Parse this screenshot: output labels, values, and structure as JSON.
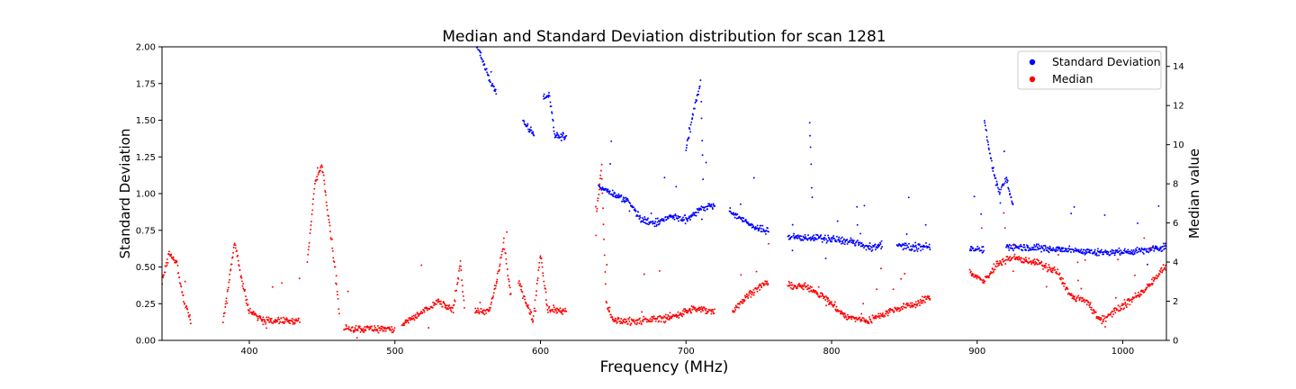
{
  "chart_data": {
    "type": "scatter",
    "title": "Median and Standard Deviation distribution for scan 1281",
    "xlabel": "Frequency (MHz)",
    "ylabel_left": "Standard Deviation",
    "ylabel_right": "Median value",
    "xlim": [
      340,
      1030
    ],
    "ylim_left": [
      0,
      2.0
    ],
    "ylim_right": [
      0,
      15
    ],
    "x_ticks": [
      400,
      500,
      600,
      700,
      800,
      900,
      1000
    ],
    "y_ticks_left": [
      "0.00",
      "0.25",
      "0.50",
      "0.75",
      "1.00",
      "1.25",
      "1.50",
      "1.75",
      "2.00"
    ],
    "y_ticks_right": [
      "0",
      "2",
      "4",
      "6",
      "8",
      "10",
      "12",
      "14"
    ],
    "grid": false,
    "legend_position": "top-right",
    "series": [
      {
        "name": "Standard Deviation",
        "axis": "left",
        "color": "#0000ff",
        "segments": [
          [
            [
              555,
              2.05
            ],
            [
              560,
              1.92
            ],
            [
              565,
              1.78
            ],
            [
              570,
              1.68
            ]
          ],
          [
            [
              588,
              1.5
            ],
            [
              592,
              1.44
            ],
            [
              596,
              1.4
            ]
          ],
          [
            [
              602,
              1.65
            ],
            [
              606,
              1.68
            ],
            [
              610,
              1.4
            ],
            [
              618,
              1.38
            ]
          ],
          [
            [
              640,
              1.05
            ],
            [
              650,
              1.0
            ],
            [
              660,
              0.95
            ],
            [
              670,
              0.82
            ],
            [
              680,
              0.8
            ],
            [
              690,
              0.85
            ],
            [
              700,
              0.82
            ],
            [
              710,
              0.9
            ],
            [
              720,
              0.92
            ]
          ],
          [
            [
              700,
              1.3
            ],
            [
              705,
              1.55
            ],
            [
              710,
              1.75
            ],
            [
              712,
              1.0
            ]
          ],
          [
            [
              730,
              0.88
            ],
            [
              745,
              0.78
            ],
            [
              757,
              0.74
            ]
          ],
          [
            [
              770,
              0.7
            ],
            [
              785,
              0.7
            ],
            [
              800,
              0.69
            ],
            [
              815,
              0.67
            ],
            [
              825,
              0.63
            ],
            [
              835,
              0.65
            ]
          ],
          [
            [
              785,
              1.5
            ],
            [
              786,
              1.2
            ],
            [
              787,
              0.9
            ]
          ],
          [
            [
              845,
              0.65
            ],
            [
              855,
              0.63
            ],
            [
              868,
              0.64
            ]
          ],
          [
            [
              895,
              0.63
            ],
            [
              905,
              0.62
            ]
          ],
          [
            [
              905,
              1.5
            ],
            [
              910,
              1.2
            ],
            [
              915,
              1.0
            ],
            [
              920,
              1.1
            ],
            [
              925,
              0.9
            ]
          ],
          [
            [
              920,
              0.64
            ],
            [
              940,
              0.63
            ],
            [
              960,
              0.62
            ],
            [
              980,
              0.6
            ],
            [
              1000,
              0.6
            ],
            [
              1020,
              0.62
            ],
            [
              1030,
              0.64
            ]
          ]
        ]
      },
      {
        "name": "Median",
        "axis": "right",
        "color": "#ff0000",
        "segments": [
          [
            [
              340,
              3.0
            ],
            [
              345,
              4.5
            ],
            [
              350,
              4.0
            ],
            [
              355,
              2.0
            ],
            [
              360,
              1.0
            ]
          ],
          [
            [
              382,
              1.0
            ],
            [
              390,
              5.0
            ],
            [
              395,
              3.0
            ],
            [
              400,
              1.5
            ],
            [
              410,
              1.0
            ],
            [
              420,
              1.0
            ],
            [
              435,
              1.0
            ]
          ],
          [
            [
              440,
              4.0
            ],
            [
              445,
              8.0
            ],
            [
              450,
              9.0
            ],
            [
              455,
              6.0
            ],
            [
              460,
              3.0
            ],
            [
              462,
              1.0
            ]
          ],
          [
            [
              465,
              0.6
            ],
            [
              480,
              0.6
            ],
            [
              495,
              0.6
            ],
            [
              500,
              0.5
            ]
          ],
          [
            [
              505,
              0.8
            ],
            [
              520,
              1.5
            ],
            [
              530,
              2.0
            ],
            [
              540,
              1.5
            ],
            [
              545,
              4.0
            ],
            [
              548,
              1.5
            ]
          ],
          [
            [
              555,
              1.5
            ],
            [
              565,
              1.5
            ],
            [
              570,
              3.0
            ],
            [
              575,
              5.0
            ],
            [
              580,
              2.0
            ]
          ],
          [
            [
              585,
              3.0
            ],
            [
              590,
              2.0
            ],
            [
              595,
              1.0
            ],
            [
              600,
              4.5
            ],
            [
              605,
              1.6
            ],
            [
              618,
              1.5
            ]
          ],
          [
            [
              638,
              6.0
            ],
            [
              642,
              9.0
            ],
            [
              645,
              2.0
            ],
            [
              650,
              1.0
            ],
            [
              670,
              1.0
            ],
            [
              690,
              1.2
            ],
            [
              705,
              1.6
            ],
            [
              720,
              1.5
            ]
          ],
          [
            [
              732,
              1.5
            ],
            [
              745,
              2.5
            ],
            [
              757,
              3.0
            ]
          ],
          [
            [
              770,
              2.8
            ],
            [
              785,
              2.7
            ],
            [
              795,
              2.2
            ],
            [
              810,
              1.2
            ],
            [
              825,
              1.0
            ],
            [
              840,
              1.5
            ],
            [
              855,
              1.8
            ],
            [
              868,
              2.2
            ]
          ],
          [
            [
              895,
              3.5
            ],
            [
              905,
              3.0
            ],
            [
              915,
              4.0
            ],
            [
              925,
              4.2
            ],
            [
              940,
              4.0
            ],
            [
              955,
              3.5
            ],
            [
              965,
              2.2
            ],
            [
              975,
              2.0
            ],
            [
              985,
              1.0
            ],
            [
              995,
              1.5
            ],
            [
              1005,
              2.0
            ],
            [
              1015,
              2.6
            ],
            [
              1030,
              3.8
            ]
          ]
        ]
      }
    ]
  }
}
